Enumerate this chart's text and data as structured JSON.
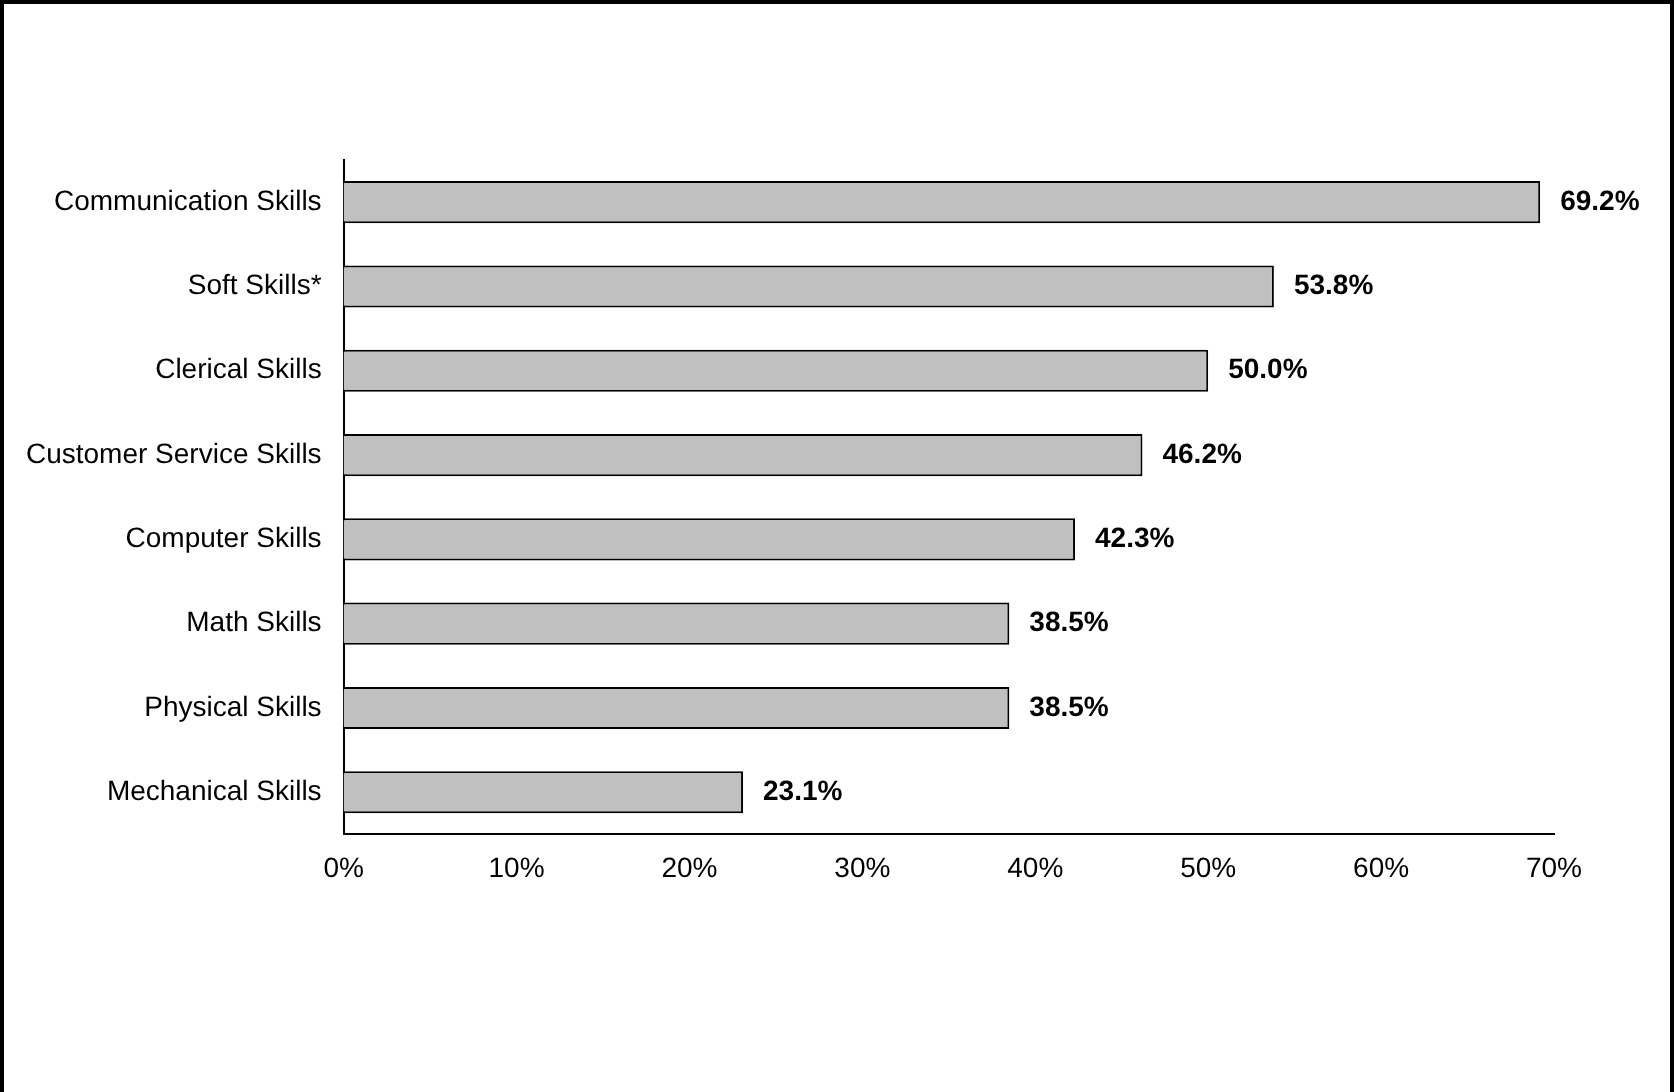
{
  "chart_data": {
    "type": "bar",
    "orientation": "horizontal",
    "categories": [
      "Communication Skills",
      "Soft Skills*",
      "Clerical Skills",
      "Customer Service Skills",
      "Computer Skills",
      "Math Skills",
      "Physical Skills",
      "Mechanical Skills"
    ],
    "values": [
      69.2,
      53.8,
      50.0,
      46.2,
      42.3,
      38.5,
      38.5,
      23.1
    ],
    "value_labels": [
      "69.2%",
      "53.8%",
      "50.0%",
      "46.2%",
      "42.3%",
      "38.5%",
      "38.5%",
      "23.1%"
    ],
    "color": "#c0c0c0",
    "xlim": [
      0,
      70
    ],
    "xticks": [
      {
        "value": 0,
        "label": "0%"
      },
      {
        "value": 10,
        "label": "10%"
      },
      {
        "value": 20,
        "label": "20%"
      },
      {
        "value": 30,
        "label": "30%"
      },
      {
        "value": 40,
        "label": "40%"
      },
      {
        "value": 50,
        "label": "50%"
      },
      {
        "value": 60,
        "label": "60%"
      },
      {
        "value": 70,
        "label": "70%"
      }
    ],
    "grid": false,
    "legend": false
  }
}
